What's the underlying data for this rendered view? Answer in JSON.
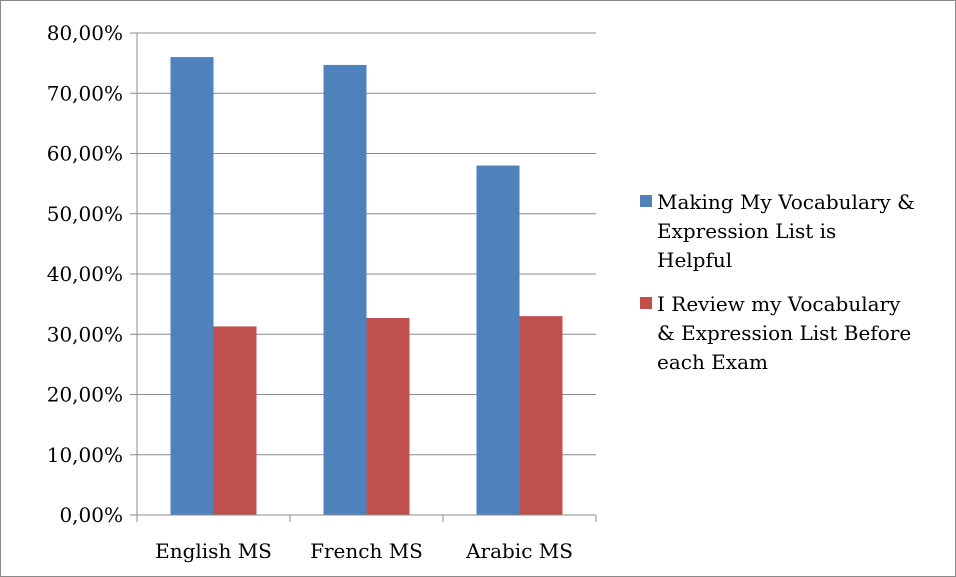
{
  "chart_data": {
    "type": "bar",
    "categories": [
      "English MS",
      "French MS",
      "Arabic MS"
    ],
    "series": [
      {
        "name": "Making My Vocabulary & Expression List is Helpful",
        "legend_lines": [
          "Making My Vocabulary &",
          "Expression List is",
          "Helpful"
        ],
        "color": "#4f81bd",
        "values": [
          76.0,
          74.7,
          58.0
        ]
      },
      {
        "name": "I Review my Vocabulary & Expression List Before each Exam",
        "legend_lines": [
          "I Review my Vocabulary",
          "& Expression List Before",
          "each Exam"
        ],
        "color": "#c0504d",
        "values": [
          31.3,
          32.7,
          33.0
        ]
      }
    ],
    "y_ticks": [
      "0,00%",
      "10,00%",
      "20,00%",
      "30,00%",
      "40,00%",
      "50,00%",
      "60,00%",
      "70,00%",
      "80,00%"
    ],
    "ylim": [
      0,
      80
    ],
    "unit": "%",
    "grid": true,
    "legend_position": "right",
    "title": "",
    "xlabel": "",
    "ylabel": ""
  }
}
